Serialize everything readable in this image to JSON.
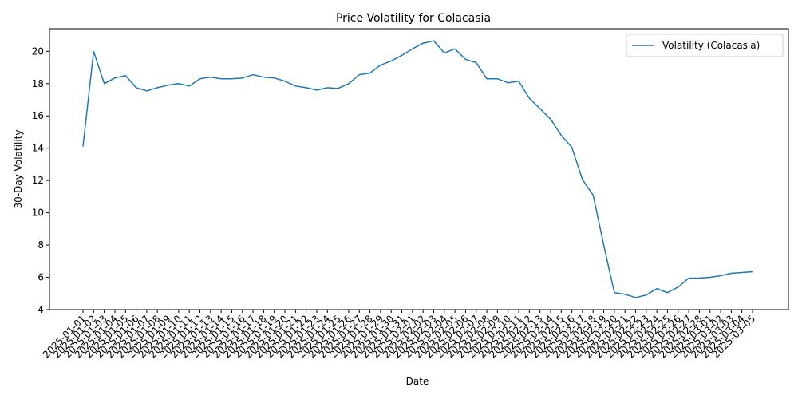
{
  "chart_data": {
    "type": "line",
    "title": "Price Volatility for Colacasia",
    "xlabel": "Date",
    "ylabel": "30-Day Volatility",
    "ylim": [
      4,
      21.4
    ],
    "yticks": [
      4,
      6,
      8,
      10,
      12,
      14,
      16,
      18,
      20
    ],
    "grid": false,
    "legend_position": "top-right",
    "x": [
      "2025-01-01",
      "2025-01-02",
      "2025-01-03",
      "2025-01-04",
      "2025-01-05",
      "2025-01-06",
      "2025-01-07",
      "2025-01-08",
      "2025-01-09",
      "2025-01-10",
      "2025-01-11",
      "2025-01-12",
      "2025-01-13",
      "2025-01-14",
      "2025-01-15",
      "2025-01-16",
      "2025-01-17",
      "2025-01-18",
      "2025-01-19",
      "2025-01-20",
      "2025-01-21",
      "2025-01-22",
      "2025-01-23",
      "2025-01-24",
      "2025-01-25",
      "2025-01-26",
      "2025-01-27",
      "2025-01-28",
      "2025-01-29",
      "2025-01-30",
      "2025-01-31",
      "2025-02-01",
      "2025-02-02",
      "2025-02-03",
      "2025-02-04",
      "2025-02-05",
      "2025-02-06",
      "2025-02-07",
      "2025-02-08",
      "2025-02-09",
      "2025-02-10",
      "2025-02-11",
      "2025-02-12",
      "2025-02-13",
      "2025-02-14",
      "2025-02-15",
      "2025-02-16",
      "2025-02-17",
      "2025-02-18",
      "2025-02-19",
      "2025-02-20",
      "2025-02-21",
      "2025-02-22",
      "2025-02-23",
      "2025-02-24",
      "2025-02-25",
      "2025-02-26",
      "2025-02-27",
      "2025-02-28",
      "2025-03-01",
      "2025-03-02",
      "2025-03-03",
      "2025-03-04",
      "2025-03-05"
    ],
    "series": [
      {
        "name": "Volatility (Colacasia)",
        "color": "#1f77b4",
        "values": [
          14.1,
          20.0,
          18.0,
          18.35,
          18.5,
          17.75,
          17.55,
          17.75,
          17.9,
          18.0,
          17.85,
          18.3,
          18.4,
          18.3,
          18.3,
          18.35,
          18.55,
          18.4,
          18.35,
          18.15,
          17.85,
          17.75,
          17.6,
          17.75,
          17.7,
          18.0,
          18.55,
          18.65,
          19.15,
          19.4,
          19.75,
          20.15,
          20.5,
          20.65,
          19.9,
          20.15,
          19.5,
          19.3,
          18.3,
          18.3,
          18.05,
          18.15,
          17.1,
          16.45,
          15.8,
          14.8,
          14.05,
          12.05,
          11.1,
          8.0,
          5.05,
          4.95,
          4.75,
          4.9,
          5.3,
          5.05,
          5.4,
          5.95,
          5.95,
          6.0,
          6.1,
          6.25,
          6.3,
          6.35
        ]
      }
    ]
  }
}
